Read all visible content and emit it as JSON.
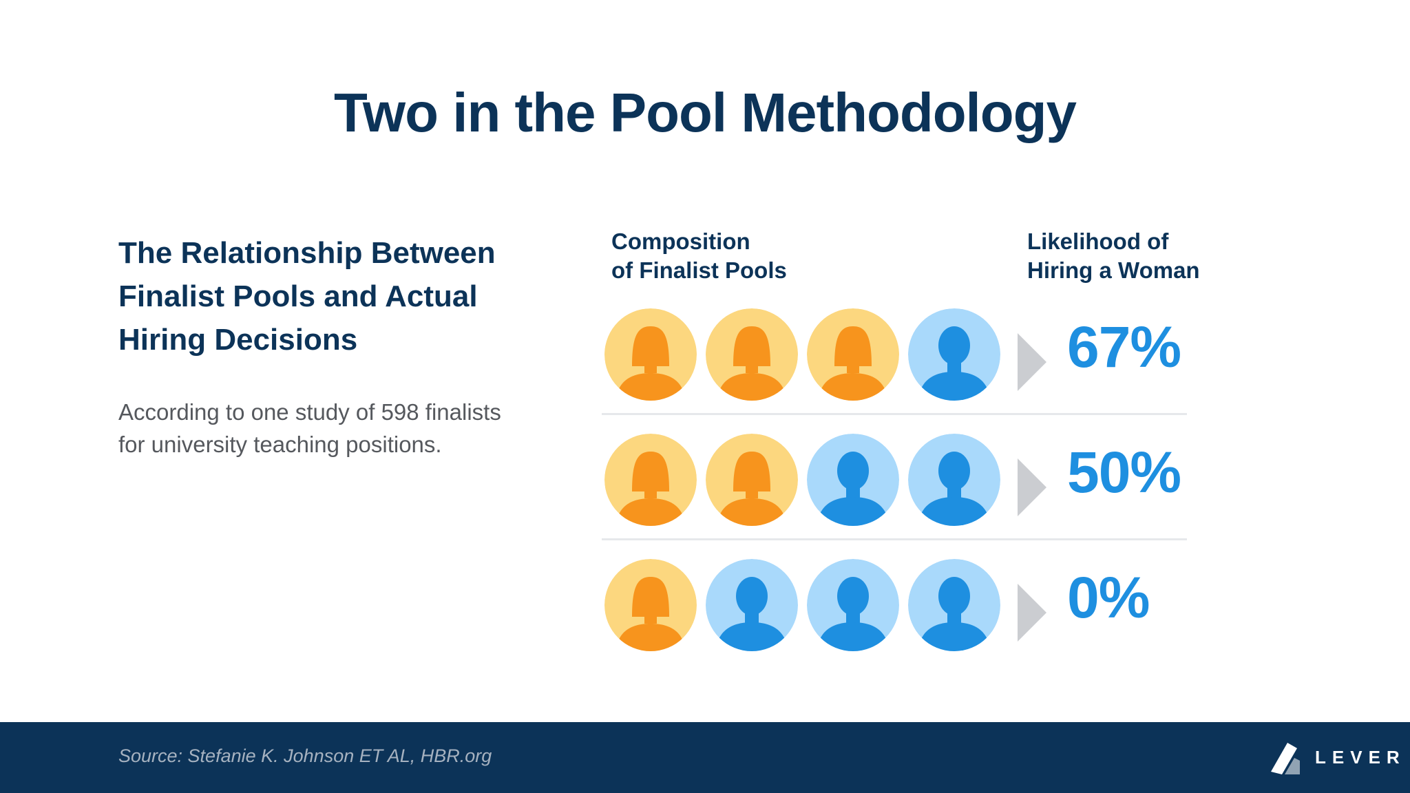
{
  "title": "Two in the Pool Methodology",
  "left": {
    "subheading_lines": [
      "The Relationship Between",
      "Finalist Pools and Actual",
      "Hiring Decisions"
    ],
    "description_lines": [
      "According to one study of 598 finalists",
      "for university teaching positions."
    ]
  },
  "infographic": {
    "composition_header": [
      "Composition",
      "of Finalist Pools"
    ],
    "likelihood_header": [
      "Likelihood of",
      "Hiring a Woman"
    ],
    "rows": [
      {
        "pool": [
          "woman",
          "woman",
          "woman",
          "man"
        ],
        "likelihood": "67%"
      },
      {
        "pool": [
          "woman",
          "woman",
          "man",
          "man"
        ],
        "likelihood": "50%"
      },
      {
        "pool": [
          "woman",
          "man",
          "man",
          "man"
        ],
        "likelihood": "0%"
      }
    ],
    "colors": {
      "woman_bg": "#fcd77f",
      "woman_figure": "#f7941d",
      "man_bg": "#a9d9fb",
      "man_figure": "#1e8fe0",
      "arrow": "#cbcdd1",
      "percent": "#1e8fe0"
    }
  },
  "footer": {
    "source": "Source: Stefanie K. Johnson ET AL, HBR.org",
    "logo_text": "LEVER",
    "logo_icon": "lever-logo-icon"
  }
}
